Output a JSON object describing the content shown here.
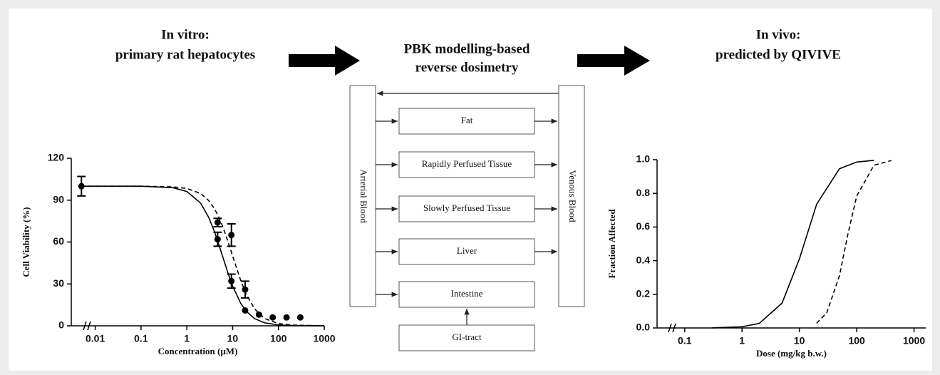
{
  "headings": [
    [
      "In vitro:",
      "primary rat hepatocytes"
    ],
    [
      "PBK modelling-based",
      "reverse dosimetry"
    ],
    [
      "In vivo:",
      "predicted by QIVIVE"
    ]
  ],
  "diagram": {
    "blood": [
      "Arterial Blood",
      "Venous Blood"
    ],
    "organs": [
      "Fat",
      "Rapidly Perfused Tissue",
      "Slowly Perfused Tissue",
      "Liver",
      "Intestine",
      "GI-tract"
    ]
  },
  "chart_data": [
    {
      "type": "line",
      "xlabel": "Concentration (µM)",
      "ylabel": "Cell Viability (%)",
      "log_x": true,
      "color": "#000000",
      "xlim": [
        0.003,
        1000
      ],
      "ylim": [
        0,
        120
      ],
      "xticks": [
        0.01,
        0.1,
        1,
        10,
        100,
        1000
      ],
      "yticks": [
        0,
        30,
        60,
        90,
        120
      ],
      "series": [
        {
          "dashed": false,
          "x": [
            0.005,
            0.1,
            0.5,
            1,
            2,
            3,
            4,
            5,
            6,
            8,
            10,
            15,
            20,
            30,
            50,
            100,
            200,
            1000
          ],
          "values": [
            100,
            100,
            98.9,
            96.2,
            87.9,
            77.7,
            67.5,
            58.1,
            50,
            37.3,
            28.5,
            16.1,
            10.3,
            5.2,
            2.1,
            0.6,
            0.2,
            0
          ]
        },
        {
          "dashed": true,
          "x": [
            0.005,
            0.1,
            0.5,
            1,
            2,
            3,
            4,
            5,
            6,
            8,
            10,
            15,
            20,
            30,
            50,
            100,
            200,
            1000
          ],
          "values": [
            100,
            100,
            99.5,
            98.4,
            94.8,
            89.7,
            83.9,
            77.7,
            71.5,
            59.9,
            50,
            32.5,
            22.3,
            12.2,
            5.2,
            1.6,
            0.5,
            0
          ]
        }
      ],
      "points": {
        "x": [
          0.005,
          4.7,
          4.7,
          9.4,
          9.4,
          18.75,
          18.75,
          37.5,
          75,
          150,
          300
        ],
        "values": [
          100,
          62,
          74,
          32,
          65,
          26,
          11,
          8,
          6,
          6,
          6
        ],
        "errors": [
          7,
          5,
          3,
          5,
          8,
          6,
          null,
          null,
          null,
          null,
          null
        ]
      }
    },
    {
      "type": "line",
      "xlabel": "Dose (mg/kg b.w.)",
      "ylabel": "Fraction Affected",
      "log_x": true,
      "color": "#000000",
      "xlim": [
        0.033,
        1600
      ],
      "ylim": [
        0,
        1
      ],
      "xticks": [
        0.1,
        1,
        10,
        100,
        1000
      ],
      "yticks": [
        {
          "value": 0,
          "label": "0.0"
        },
        0.2,
        0.4,
        0.6,
        0.8,
        {
          "value": 1,
          "label": "1.0"
        }
      ],
      "series": [
        {
          "dashed": false,
          "x": [
            0.3,
            1,
            2,
            5,
            10,
            20,
            50,
            100,
            200
          ],
          "values": [
            0.0006,
            0.007,
            0.027,
            0.148,
            0.41,
            0.735,
            0.946,
            0.986,
            0.996
          ]
        },
        {
          "dashed": true,
          "x": [
            20,
            30,
            50,
            70,
            100,
            200,
            400
          ],
          "values": [
            0.028,
            0.089,
            0.31,
            0.556,
            0.784,
            0.967,
            0.995
          ]
        }
      ]
    }
  ]
}
